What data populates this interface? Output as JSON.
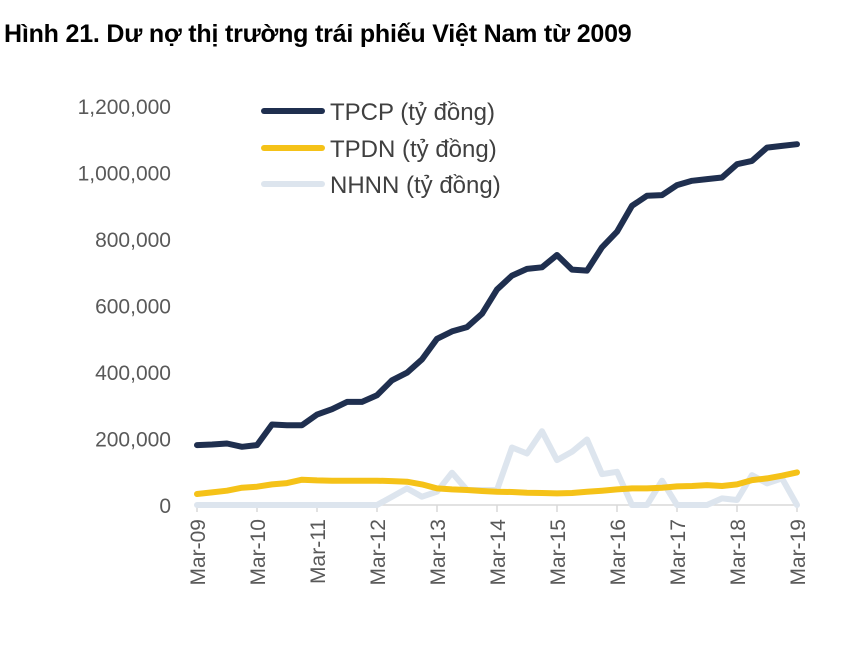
{
  "title": "Hình 21. Dư nợ thị trường trái phiếu Việt Nam từ 2009",
  "chart_data": {
    "type": "line",
    "title": "Hình 21. Dư nợ thị trường trái phiếu Việt Nam từ 2009",
    "xlabel": "",
    "ylabel": "",
    "ylim": [
      0,
      1200000
    ],
    "y_ticks": [
      "0",
      "200,000",
      "400,000",
      "600,000",
      "800,000",
      "1,000,000",
      "1,200,000"
    ],
    "x_ticks": [
      "Mar-09",
      "Mar-10",
      "Mar-11",
      "Mar-12",
      "Mar-13",
      "Mar-14",
      "Mar-15",
      "Mar-16",
      "Mar-17",
      "Mar-18",
      "Mar-19"
    ],
    "x": [
      "Mar-09",
      "Jun-09",
      "Sep-09",
      "Dec-09",
      "Mar-10",
      "Jun-10",
      "Sep-10",
      "Dec-10",
      "Mar-11",
      "Jun-11",
      "Sep-11",
      "Dec-11",
      "Mar-12",
      "Jun-12",
      "Sep-12",
      "Dec-12",
      "Mar-13",
      "Jun-13",
      "Sep-13",
      "Dec-13",
      "Mar-14",
      "Jun-14",
      "Sep-14",
      "Dec-14",
      "Mar-15",
      "Jun-15",
      "Sep-15",
      "Dec-15",
      "Mar-16",
      "Jun-16",
      "Sep-16",
      "Dec-16",
      "Mar-17",
      "Jun-17",
      "Sep-17",
      "Dec-17",
      "Mar-18",
      "Jun-18",
      "Sep-18",
      "Dec-18",
      "Mar-19"
    ],
    "grid": false,
    "legend_position": "top-left",
    "series": [
      {
        "name": "TPCP (tỷ đồng)",
        "color": "#1f2f4f",
        "values": [
          180000,
          182000,
          185000,
          175000,
          180000,
          242000,
          240000,
          240000,
          272000,
          288000,
          310000,
          310000,
          330000,
          375000,
          398000,
          438000,
          500000,
          522000,
          535000,
          575000,
          648000,
          690000,
          710000,
          715000,
          752000,
          708000,
          705000,
          775000,
          822000,
          900000,
          930000,
          932000,
          962000,
          975000,
          980000,
          985000,
          1025000,
          1035000,
          1075000,
          1080000,
          1085000
        ]
      },
      {
        "name": "TPDN (tỷ đồng)",
        "color": "#f5c218",
        "values": [
          33000,
          38000,
          43000,
          52000,
          55000,
          62000,
          66000,
          76000,
          74000,
          73000,
          73000,
          73000,
          73000,
          72000,
          70000,
          62000,
          50000,
          47000,
          45000,
          42000,
          40000,
          39000,
          37000,
          36000,
          35000,
          36000,
          40000,
          43000,
          47000,
          50000,
          50000,
          52000,
          56000,
          57000,
          60000,
          57000,
          62000,
          75000,
          80000,
          88000,
          98000
        ]
      },
      {
        "name": "NHNN (tỷ đồng)",
        "color": "#dde5ee",
        "values": [
          0,
          0,
          0,
          0,
          0,
          0,
          0,
          0,
          0,
          0,
          0,
          0,
          0,
          25000,
          50000,
          25000,
          40000,
          97000,
          45000,
          45000,
          45000,
          173000,
          155000,
          222000,
          135000,
          160000,
          197000,
          93000,
          100000,
          0,
          0,
          73000,
          0,
          0,
          0,
          20000,
          15000,
          90000,
          65000,
          80000,
          0
        ]
      }
    ]
  }
}
